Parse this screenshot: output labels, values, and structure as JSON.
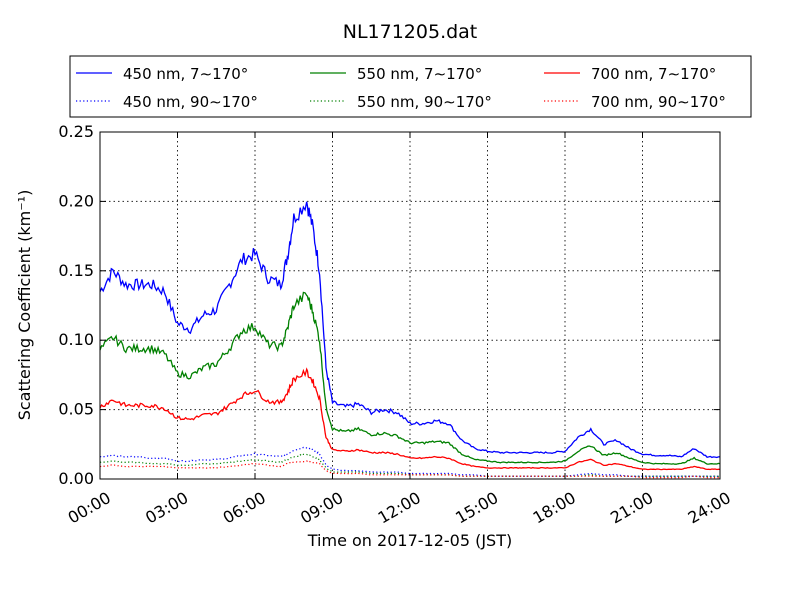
{
  "chart_data": {
    "type": "line",
    "title": "NL171205.dat",
    "xlabel": "Time on 2017-12-05 (JST)",
    "ylabel": "Scattering Coefficient (km⁻¹)",
    "xlim": [
      "00:00",
      "24:00"
    ],
    "ylim": [
      0,
      0.25
    ],
    "x_ticks": [
      "00:00",
      "03:00",
      "06:00",
      "09:00",
      "12:00",
      "15:00",
      "18:00",
      "21:00",
      "24:00"
    ],
    "y_ticks": [
      "0.00",
      "0.05",
      "0.10",
      "0.15",
      "0.20",
      "0.25"
    ],
    "grid": true,
    "legend_position": "top",
    "x": [
      "00:00",
      "00:30",
      "01:00",
      "01:30",
      "02:00",
      "02:30",
      "03:00",
      "03:30",
      "04:00",
      "04:30",
      "05:00",
      "05:30",
      "06:00",
      "06:30",
      "07:00",
      "07:15",
      "07:30",
      "08:00",
      "08:15",
      "08:30",
      "08:45",
      "09:00",
      "09:30",
      "10:00",
      "10:30",
      "11:00",
      "11:30",
      "12:00",
      "12:30",
      "13:00",
      "13:30",
      "14:00",
      "14:30",
      "15:00",
      "15:30",
      "16:00",
      "16:30",
      "17:00",
      "17:30",
      "18:00",
      "18:30",
      "19:00",
      "19:30",
      "20:00",
      "20:30",
      "21:00",
      "21:30",
      "22:00",
      "22:30",
      "23:00",
      "23:30",
      "24:00"
    ],
    "series": [
      {
        "name": "450 nm, 7∼170°",
        "color": "#0000ff",
        "style": "solid",
        "values": [
          0.135,
          0.15,
          0.14,
          0.14,
          0.14,
          0.135,
          0.112,
          0.108,
          0.118,
          0.122,
          0.14,
          0.158,
          0.162,
          0.145,
          0.14,
          0.16,
          0.188,
          0.2,
          0.18,
          0.15,
          0.08,
          0.055,
          0.052,
          0.054,
          0.048,
          0.05,
          0.048,
          0.04,
          0.04,
          0.042,
          0.04,
          0.028,
          0.022,
          0.02,
          0.019,
          0.019,
          0.019,
          0.019,
          0.019,
          0.02,
          0.03,
          0.036,
          0.025,
          0.028,
          0.022,
          0.018,
          0.017,
          0.017,
          0.016,
          0.022,
          0.016,
          0.016
        ]
      },
      {
        "name": "450 nm, 90∼170°",
        "color": "#0000ff",
        "style": "dotted",
        "values": [
          0.016,
          0.017,
          0.016,
          0.016,
          0.015,
          0.015,
          0.013,
          0.013,
          0.014,
          0.014,
          0.015,
          0.017,
          0.018,
          0.017,
          0.016,
          0.018,
          0.021,
          0.023,
          0.021,
          0.018,
          0.01,
          0.007,
          0.006,
          0.006,
          0.005,
          0.005,
          0.005,
          0.004,
          0.004,
          0.004,
          0.004,
          0.003,
          0.003,
          0.002,
          0.002,
          0.002,
          0.002,
          0.002,
          0.002,
          0.002,
          0.003,
          0.004,
          0.003,
          0.003,
          0.002,
          0.002,
          0.002,
          0.002,
          0.002,
          0.002,
          0.002,
          0.002
        ]
      },
      {
        "name": "550 nm, 7∼170°",
        "color": "#008000",
        "style": "solid",
        "values": [
          0.093,
          0.102,
          0.094,
          0.094,
          0.094,
          0.09,
          0.076,
          0.074,
          0.08,
          0.083,
          0.094,
          0.107,
          0.11,
          0.097,
          0.095,
          0.108,
          0.125,
          0.133,
          0.12,
          0.1,
          0.052,
          0.036,
          0.034,
          0.036,
          0.032,
          0.033,
          0.031,
          0.026,
          0.026,
          0.027,
          0.026,
          0.018,
          0.014,
          0.013,
          0.012,
          0.012,
          0.012,
          0.012,
          0.012,
          0.013,
          0.02,
          0.024,
          0.017,
          0.019,
          0.015,
          0.012,
          0.011,
          0.011,
          0.011,
          0.015,
          0.011,
          0.011
        ]
      },
      {
        "name": "550 nm, 90∼170°",
        "color": "#008000",
        "style": "dotted",
        "values": [
          0.012,
          0.013,
          0.012,
          0.012,
          0.011,
          0.011,
          0.01,
          0.01,
          0.011,
          0.011,
          0.012,
          0.013,
          0.014,
          0.013,
          0.012,
          0.014,
          0.016,
          0.018,
          0.016,
          0.014,
          0.008,
          0.005,
          0.005,
          0.005,
          0.004,
          0.004,
          0.004,
          0.003,
          0.003,
          0.003,
          0.003,
          0.002,
          0.002,
          0.002,
          0.002,
          0.002,
          0.002,
          0.002,
          0.002,
          0.002,
          0.002,
          0.003,
          0.002,
          0.002,
          0.002,
          0.002,
          0.002,
          0.002,
          0.002,
          0.002,
          0.002,
          0.002
        ]
      },
      {
        "name": "700 nm, 7∼170°",
        "color": "#ff0000",
        "style": "solid",
        "values": [
          0.052,
          0.057,
          0.053,
          0.053,
          0.053,
          0.051,
          0.044,
          0.043,
          0.046,
          0.047,
          0.053,
          0.06,
          0.064,
          0.056,
          0.055,
          0.062,
          0.072,
          0.077,
          0.07,
          0.058,
          0.03,
          0.021,
          0.02,
          0.021,
          0.019,
          0.019,
          0.018,
          0.015,
          0.015,
          0.016,
          0.015,
          0.011,
          0.009,
          0.008,
          0.008,
          0.008,
          0.008,
          0.008,
          0.008,
          0.008,
          0.012,
          0.014,
          0.01,
          0.011,
          0.009,
          0.007,
          0.007,
          0.007,
          0.007,
          0.009,
          0.007,
          0.007
        ]
      },
      {
        "name": "700 nm, 90∼170°",
        "color": "#ff0000",
        "style": "dotted",
        "values": [
          0.009,
          0.01,
          0.009,
          0.009,
          0.009,
          0.009,
          0.008,
          0.008,
          0.008,
          0.008,
          0.009,
          0.01,
          0.011,
          0.01,
          0.009,
          0.011,
          0.012,
          0.013,
          0.012,
          0.011,
          0.006,
          0.004,
          0.004,
          0.004,
          0.003,
          0.003,
          0.003,
          0.003,
          0.003,
          0.003,
          0.003,
          0.002,
          0.002,
          0.002,
          0.002,
          0.002,
          0.002,
          0.002,
          0.002,
          0.002,
          0.002,
          0.002,
          0.002,
          0.002,
          0.002,
          0.001,
          0.001,
          0.001,
          0.001,
          0.002,
          0.001,
          0.001
        ]
      }
    ]
  }
}
